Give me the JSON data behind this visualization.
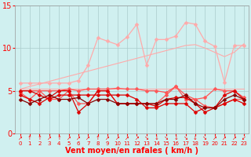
{
  "x": [
    0,
    1,
    2,
    3,
    4,
    5,
    6,
    7,
    8,
    9,
    10,
    11,
    12,
    13,
    14,
    15,
    16,
    17,
    18,
    19,
    20,
    21,
    22,
    23
  ],
  "lines": [
    {
      "y": [
        5.2,
        5.2,
        5.2,
        5.2,
        5.2,
        5.2,
        5.2,
        5.2,
        5.2,
        5.2,
        5.2,
        5.2,
        5.2,
        5.2,
        5.2,
        5.2,
        5.2,
        5.2,
        5.2,
        5.2,
        5.2,
        5.2,
        5.2,
        5.2
      ],
      "color": "#ffaaaa",
      "lw": 0.8,
      "marker": null
    },
    {
      "y": [
        5.2,
        5.5,
        5.8,
        6.1,
        6.4,
        6.7,
        7.0,
        7.3,
        7.6,
        7.9,
        8.2,
        8.5,
        8.8,
        9.1,
        9.4,
        9.7,
        10.0,
        10.3,
        10.4,
        10.0,
        9.5,
        9.0,
        9.5,
        10.5
      ],
      "color": "#ffaaaa",
      "lw": 0.8,
      "marker": null
    },
    {
      "y": [
        5.9,
        5.9,
        5.9,
        5.9,
        5.9,
        5.9,
        6.2,
        8.0,
        11.2,
        10.8,
        10.4,
        11.3,
        12.8,
        8.0,
        11.0,
        11.0,
        11.4,
        13.0,
        12.8,
        10.8,
        10.2,
        6.0,
        10.3,
        10.3
      ],
      "color": "#ffaaaa",
      "lw": 0.9,
      "marker": "D",
      "ms": 2.5
    },
    {
      "y": [
        5.0,
        5.0,
        5.0,
        5.0,
        5.0,
        5.2,
        5.0,
        5.2,
        5.2,
        5.2,
        5.3,
        5.2,
        5.2,
        5.0,
        5.0,
        4.8,
        5.5,
        4.5,
        4.0,
        4.2,
        5.2,
        5.0,
        5.0,
        4.2
      ],
      "color": "#ff5555",
      "lw": 0.9,
      "marker": "D",
      "ms": 2.5
    },
    {
      "y": [
        4.8,
        4.0,
        5.0,
        4.0,
        4.0,
        5.0,
        3.5,
        3.5,
        5.0,
        5.0,
        3.5,
        3.5,
        3.5,
        3.5,
        3.5,
        4.5,
        5.5,
        4.0,
        4.0,
        3.2,
        3.0,
        3.5,
        4.0,
        4.0
      ],
      "color": "#ff5555",
      "lw": 0.9,
      "marker": "D",
      "ms": 2.5
    },
    {
      "y": [
        5.0,
        5.0,
        4.5,
        4.0,
        4.5,
        4.5,
        4.5,
        4.5,
        4.5,
        4.5,
        4.5,
        4.5,
        4.0,
        3.0,
        3.0,
        3.5,
        3.5,
        3.5,
        2.5,
        3.0,
        3.0,
        3.5,
        4.0,
        3.5
      ],
      "color": "#dd0000",
      "lw": 0.9,
      "marker": "D",
      "ms": 2.5
    },
    {
      "y": [
        4.5,
        4.0,
        3.5,
        4.2,
        5.0,
        5.0,
        2.5,
        3.5,
        5.0,
        5.0,
        3.5,
        3.5,
        3.5,
        3.5,
        3.2,
        4.0,
        4.2,
        4.2,
        3.5,
        2.5,
        3.0,
        4.5,
        5.0,
        4.0
      ],
      "color": "#dd0000",
      "lw": 0.9,
      "marker": "D",
      "ms": 2.5
    },
    {
      "y": [
        4.0,
        3.5,
        4.0,
        4.5,
        4.0,
        4.0,
        4.2,
        3.5,
        4.0,
        4.0,
        3.5,
        3.5,
        3.5,
        3.5,
        3.5,
        4.0,
        4.0,
        4.5,
        3.5,
        3.0,
        3.0,
        4.0,
        4.5,
        4.0
      ],
      "color": "#880000",
      "lw": 0.9,
      "marker": "D",
      "ms": 2.5
    }
  ],
  "xlabel": "Vent moyen/en rafales ( km/h )",
  "xlim_min": -0.5,
  "xlim_max": 23.5,
  "ylim": [
    0,
    15
  ],
  "yticks": [
    0,
    5,
    10,
    15
  ],
  "xticks": [
    0,
    1,
    2,
    3,
    4,
    5,
    6,
    7,
    8,
    9,
    10,
    11,
    12,
    13,
    14,
    15,
    16,
    17,
    18,
    19,
    20,
    21,
    22,
    23
  ],
  "arrows": [
    "↗",
    "↑",
    "↑",
    "↗",
    "↑",
    "↗",
    "↗",
    "↗",
    "↑",
    "↗",
    "↗",
    "↗",
    "↗",
    "↘",
    "↓",
    "↘",
    "↓",
    "↘",
    "↓",
    "↘",
    "↗",
    "↗",
    "↗",
    "↙"
  ],
  "bg_color": "#d0f0f0",
  "grid_color": "#aacccc",
  "tick_color": "#ff0000",
  "xlabel_color": "#ff0000",
  "xlabel_fontsize": 7,
  "ytick_fontsize": 7,
  "xtick_fontsize": 5
}
